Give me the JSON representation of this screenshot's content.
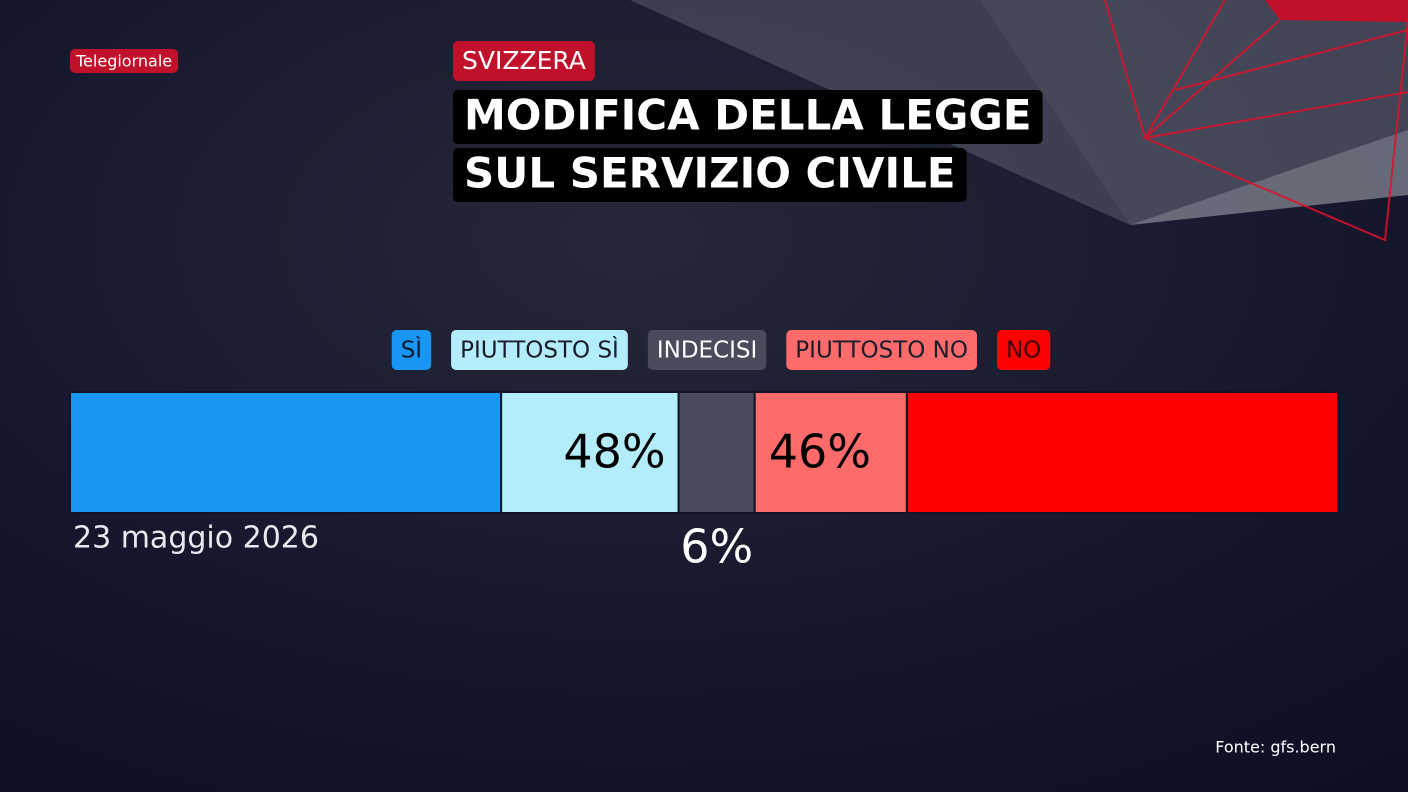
{
  "chart_data": {
    "type": "stacked-bar",
    "brand": "Telegiornale",
    "kicker": "SVIZZERA",
    "title": [
      "MODIFICA DELLA LEGGE",
      "SUL SERVIZIO CIVILE"
    ],
    "date": "23 maggio 2026",
    "source": "Fonte: gfs.bern",
    "xlim": [
      0,
      100
    ],
    "series": [
      {
        "name": "SÌ",
        "color": "#1896f6",
        "text_color": "#0d1a30",
        "values": [
          34
        ]
      },
      {
        "name": "PIUTTOSTO SÌ",
        "color": "#b3ecfa",
        "text_color": "#1a1c2a",
        "values": [
          14
        ]
      },
      {
        "name": "INDECISI",
        "color": "#474b5c",
        "text_color": "#ffffff",
        "values": [
          6
        ]
      },
      {
        "name": "PIUTTOSTO NO",
        "color": "#ff6b6b",
        "text_color": "#1a1c2a",
        "values": [
          12
        ]
      },
      {
        "name": "NO",
        "color": "#ff0000",
        "text_color": "#3a0008",
        "values": [
          34
        ]
      }
    ],
    "group_labels": [
      {
        "value": 48,
        "label": "48%"
      },
      {
        "value": 6,
        "label": "6%"
      },
      {
        "value": 46,
        "label": "46%"
      }
    ]
  }
}
